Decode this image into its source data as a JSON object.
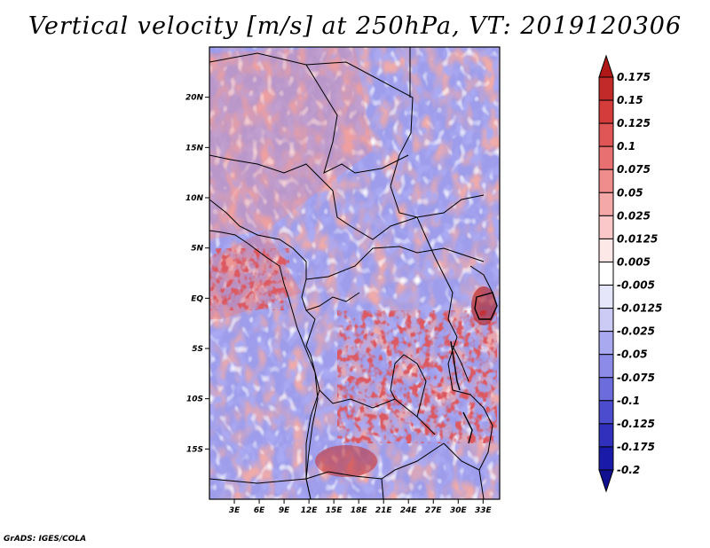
{
  "title": "Vertical velocity [m/s] at 250hPa, VT: 2019120306",
  "credit": "GrADS: IGES/COLA",
  "map": {
    "lon_labels": [
      "3E",
      "6E",
      "9E",
      "12E",
      "15E",
      "18E",
      "21E",
      "24E",
      "27E",
      "30E",
      "33E"
    ],
    "lat_labels": [
      "20N",
      "15N",
      "10N",
      "5N",
      "EQ",
      "5S",
      "10S",
      "15S"
    ],
    "lon_range": [
      0,
      35
    ],
    "lat_range": [
      -20,
      25
    ]
  },
  "colorbar": {
    "labels": [
      "0.175",
      "0.15",
      "0.125",
      "0.1",
      "0.075",
      "0.05",
      "0.025",
      "0.0125",
      "0.005",
      "-0.005",
      "-0.0125",
      "-0.025",
      "-0.05",
      "-0.075",
      "-0.1",
      "-0.125",
      "-0.175",
      "-0.2"
    ],
    "colors": [
      "#b01818",
      "#c22a2a",
      "#d43c3c",
      "#e05555",
      "#e87070",
      "#ef8c8c",
      "#f5a8a8",
      "#fac8c8",
      "#fde8e8",
      "#ffffff",
      "#e6e6fb",
      "#cbcbf6",
      "#a9a9ef",
      "#8c8ce8",
      "#6c6cdc",
      "#4c4cce",
      "#3030bc",
      "#1a1aa8",
      "#101090"
    ]
  }
}
